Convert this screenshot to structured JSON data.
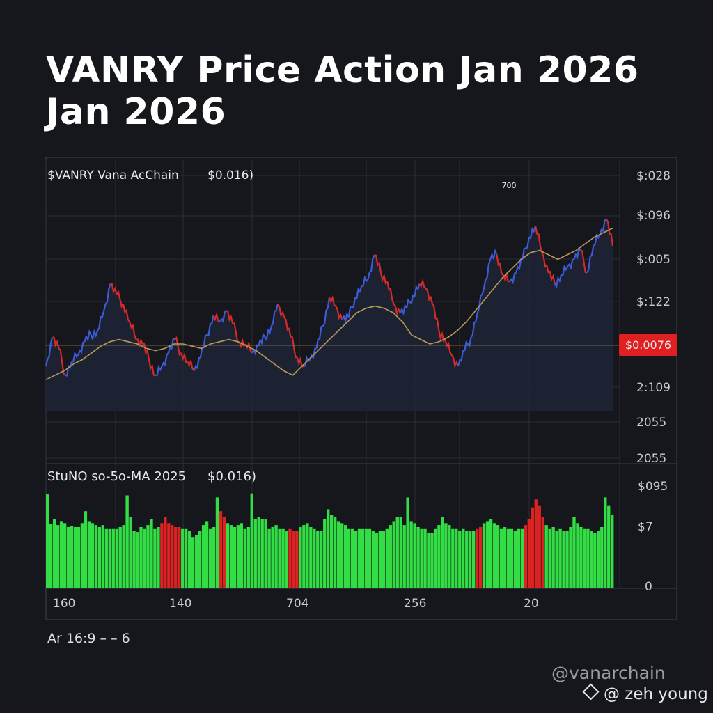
{
  "title_line1": "VANRY Price Action Jan 2026",
  "title_line2": "Jan 2026",
  "footnote": "Ar 16:9 – – 6",
  "watermark": {
    "handle": "@vanarchain",
    "author": "@ zeh young",
    "icon": "diamond-logo-icon"
  },
  "colors": {
    "background": "#15171c",
    "up": "#3b5bd9",
    "down": "#d62a2a",
    "ma_line": "#b79a5a",
    "volume_up": "#33dd44",
    "volume_down": "#dd2222",
    "price_badge": "#e02020"
  },
  "chart_data": [
    {
      "type": "line",
      "panel": "price",
      "legend_label": "$VANRY Vana AcChain",
      "legend_value": "$0.016)",
      "peak_annotation": "700",
      "price_badge": "$0.0076",
      "y_tick_labels": [
        "$:028",
        "$:096",
        "$:005",
        "$:122",
        "2:109",
        "2055",
        "2055"
      ],
      "grid": true,
      "series": [
        {
          "name": "price",
          "values": [
            20,
            33,
            28,
            16,
            22,
            25,
            31,
            34,
            36,
            45,
            57,
            52,
            48,
            40,
            32,
            30,
            23,
            16,
            20,
            26,
            32,
            26,
            22,
            18,
            24,
            34,
            43,
            40,
            45,
            39,
            31,
            30,
            26,
            29,
            33,
            38,
            48,
            42,
            33,
            24,
            20,
            23,
            28,
            38,
            51,
            47,
            41,
            42,
            51,
            56,
            59,
            70,
            62,
            58,
            48,
            44,
            46,
            52,
            57,
            55,
            48,
            36,
            32,
            25,
            20,
            27,
            33,
            44,
            55,
            68,
            70,
            61,
            58,
            62,
            68,
            78,
            83,
            71,
            62,
            57,
            61,
            65,
            68,
            72,
            62,
            74,
            79,
            86,
            74
          ]
        },
        {
          "name": "ma",
          "values": [
            14,
            16,
            18,
            21,
            23,
            26,
            29,
            31,
            32,
            31,
            30,
            28,
            27,
            28,
            30,
            30,
            29,
            28,
            30,
            31,
            32,
            31,
            29,
            27,
            24,
            21,
            18,
            16,
            20,
            24,
            28,
            32,
            36,
            40,
            44,
            46,
            47,
            46,
            44,
            40,
            34,
            32,
            30,
            31,
            33,
            36,
            40,
            45,
            50,
            55,
            60,
            64,
            68,
            71,
            72,
            70,
            68,
            70,
            72,
            75,
            78,
            80,
            82
          ]
        }
      ]
    },
    {
      "type": "bar",
      "panel": "volume",
      "legend_label": "StuNO so-5o-MA 2025",
      "legend_value": "$0.016)",
      "y_tick_labels": [
        "$095",
        "$7",
        "0"
      ],
      "x_tick_labels": [
        "160",
        "140",
        "704",
        "256",
        "20"
      ],
      "values": [
        95,
        65,
        70,
        64,
        68,
        66,
        62,
        63,
        62,
        62,
        66,
        78,
        68,
        66,
        64,
        62,
        64,
        60,
        60,
        60,
        60,
        62,
        64,
        94,
        72,
        58,
        57,
        62,
        60,
        64,
        70,
        60,
        62,
        66,
        72,
        66,
        64,
        62,
        62,
        60,
        60,
        58,
        52,
        54,
        58,
        64,
        68,
        60,
        62,
        92,
        78,
        72,
        66,
        64,
        62,
        64,
        66,
        60,
        62,
        96,
        70,
        72,
        70,
        70,
        60,
        62,
        64,
        60,
        60,
        58,
        60,
        58,
        58,
        62,
        64,
        66,
        62,
        60,
        58,
        58,
        70,
        80,
        74,
        72,
        68,
        66,
        64,
        60,
        60,
        58,
        60,
        60,
        60,
        60,
        58,
        56,
        58,
        58,
        60,
        64,
        68,
        72,
        72,
        64,
        92,
        68,
        66,
        62,
        60,
        60,
        56,
        56,
        60,
        64,
        72,
        66,
        64,
        60,
        60,
        58,
        60,
        58,
        58,
        58,
        60,
        62,
        66,
        68,
        70,
        66,
        64,
        60,
        62,
        60,
        60,
        58,
        60,
        60,
        64,
        70,
        82,
        90,
        84,
        72,
        64,
        60,
        62,
        58,
        60,
        58,
        58,
        62,
        72,
        66,
        62,
        60,
        60,
        58,
        56,
        58,
        62,
        92,
        84,
        74
      ],
      "down_ranges": [
        [
          33,
          38
        ],
        [
          50,
          51
        ],
        [
          70,
          72
        ],
        [
          124,
          125
        ],
        [
          138,
          143
        ]
      ]
    }
  ]
}
